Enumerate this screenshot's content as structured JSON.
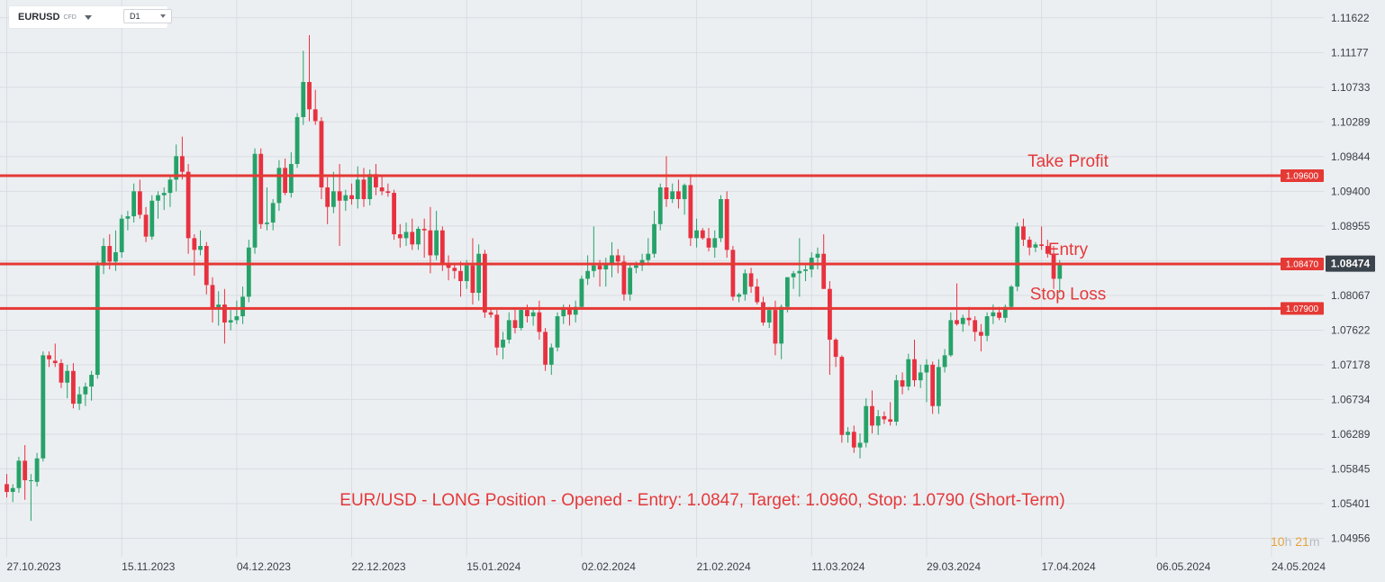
{
  "toolbar": {
    "symbol": "EURUSD",
    "symbol_type": "CFD",
    "timeframe": "D1"
  },
  "countdown": {
    "hours": "10",
    "hours_unit": "h",
    "minutes": "21",
    "minutes_unit": "m"
  },
  "colors": {
    "background": "#eceff2",
    "bullish": "#26a269",
    "bearish": "#e8313f",
    "level_line": "#e53935",
    "annotation_text": "#e5393a",
    "current_price_badge": "#3b434c"
  },
  "chart_data": {
    "type": "candlestick",
    "symbol": "EURUSD",
    "timeframe": "D1",
    "title": "",
    "ylim": [
      1.0472,
      1.1185
    ],
    "y_ticks": [
      "1.11622",
      "1.11177",
      "1.10733",
      "1.10289",
      "1.09844",
      "1.09400",
      "1.08955",
      "1.08511",
      "1.08067",
      "1.07622",
      "1.07178",
      "1.06734",
      "1.06289",
      "1.05845",
      "1.05401",
      "1.04956"
    ],
    "x_ticks": [
      "27.10.2023",
      "15.11.2023",
      "04.12.2023",
      "22.12.2023",
      "15.01.2024",
      "02.02.2024",
      "21.02.2024",
      "11.03.2024",
      "29.03.2024",
      "17.04.2024",
      "06.05.2024",
      "24.05.2024"
    ],
    "x_tick_index": [
      0,
      19,
      38,
      57,
      76,
      95,
      114,
      133,
      152,
      171,
      190,
      209
    ],
    "current_price": "1.08474",
    "current_price_value": 1.08474,
    "levels": [
      {
        "name": "Take Profit",
        "label": "Take Profit",
        "price": 1.096,
        "price_label": "1.09600"
      },
      {
        "name": "Entry",
        "label": "Entry",
        "price": 1.0847,
        "price_label": "1.08470"
      },
      {
        "name": "Stop Loss",
        "label": "Stop Loss",
        "price": 1.079,
        "price_label": "1.07900"
      }
    ],
    "annotation": "EUR/USD - LONG Position - Opened - Entry: 1.0847, Target: 1.0960, Stop: 1.0790 (Short-Term)",
    "candles": [
      [
        1.0565,
        1.0578,
        1.0548,
        1.0555
      ],
      [
        1.0555,
        1.0565,
        1.0542,
        1.056
      ],
      [
        1.056,
        1.06,
        1.0554,
        1.0595
      ],
      [
        1.0595,
        1.0615,
        1.0545,
        1.057
      ],
      [
        1.057,
        1.0578,
        1.0518,
        1.057
      ],
      [
        1.0568,
        1.0605,
        1.0562,
        1.0598
      ],
      [
        1.0598,
        1.0735,
        1.0594,
        1.073
      ],
      [
        1.073,
        1.0735,
        1.0715,
        1.0725
      ],
      [
        1.0723,
        1.0745,
        1.0715,
        1.072
      ],
      [
        1.072,
        1.0725,
        1.0688,
        1.0695
      ],
      [
        1.0695,
        1.0718,
        1.0675,
        1.071
      ],
      [
        1.071,
        1.072,
        1.0662,
        1.0668
      ],
      [
        1.0668,
        1.069,
        1.066,
        1.068
      ],
      [
        1.068,
        1.0695,
        1.0665,
        1.069
      ],
      [
        1.069,
        1.071,
        1.0672,
        1.0705
      ],
      [
        1.0705,
        1.085,
        1.07,
        1.0845
      ],
      [
        1.0845,
        1.088,
        1.0834,
        1.087
      ],
      [
        1.087,
        1.0885,
        1.084,
        1.085
      ],
      [
        1.085,
        1.089,
        1.0838,
        1.0862
      ],
      [
        1.0862,
        1.091,
        1.0855,
        1.0905
      ],
      [
        1.0905,
        1.0915,
        1.089,
        1.0908
      ],
      [
        1.0908,
        1.095,
        1.09,
        1.094
      ],
      [
        1.094,
        1.0955,
        1.0905,
        1.091
      ],
      [
        1.091,
        1.092,
        1.0875,
        1.0882
      ],
      [
        1.0882,
        1.0935,
        1.0878,
        1.0928
      ],
      [
        1.0928,
        1.094,
        1.0905,
        1.0935
      ],
      [
        1.0935,
        1.0945,
        1.0916,
        1.0938
      ],
      [
        1.0938,
        1.096,
        1.092,
        1.0955
      ],
      [
        1.0955,
        1.1,
        1.094,
        1.0985
      ],
      [
        1.0985,
        1.101,
        1.0955,
        1.0965
      ],
      [
        1.0965,
        1.0975,
        1.086,
        1.088
      ],
      [
        1.088,
        1.0885,
        1.0832,
        1.0865
      ],
      [
        1.0865,
        1.089,
        1.0858,
        1.087
      ],
      [
        1.087,
        1.0875,
        1.0808,
        1.082
      ],
      [
        1.082,
        1.083,
        1.0772,
        1.079
      ],
      [
        1.079,
        1.0812,
        1.0768,
        1.0795
      ],
      [
        1.0795,
        1.0815,
        1.0745,
        1.0772
      ],
      [
        1.0772,
        1.0788,
        1.0762,
        1.0775
      ],
      [
        1.0775,
        1.08,
        1.077,
        1.078
      ],
      [
        1.078,
        1.0818,
        1.077,
        1.0805
      ],
      [
        1.0805,
        1.0878,
        1.0798,
        1.0868
      ],
      [
        1.0868,
        1.0995,
        1.086,
        1.0988
      ],
      [
        1.0988,
        1.0995,
        1.0892,
        1.0898
      ],
      [
        1.0898,
        1.0945,
        1.089,
        1.09
      ],
      [
        1.09,
        1.093,
        1.089,
        1.0925
      ],
      [
        1.0925,
        1.098,
        1.0915,
        1.097
      ],
      [
        1.097,
        1.0982,
        1.0935,
        1.0938
      ],
      [
        1.0938,
        1.099,
        1.0932,
        1.0975
      ],
      [
        1.0975,
        1.104,
        1.097,
        1.1035
      ],
      [
        1.1035,
        1.112,
        1.1025,
        1.108
      ],
      [
        1.108,
        1.114,
        1.103,
        1.1045
      ],
      [
        1.1045,
        1.107,
        1.1025,
        1.103
      ],
      [
        1.103,
        1.1035,
        1.093,
        1.0945
      ],
      [
        1.0945,
        1.0958,
        1.0898,
        1.092
      ],
      [
        1.092,
        1.0965,
        1.0912,
        1.094
      ],
      [
        1.094,
        1.0975,
        1.087,
        1.0928
      ],
      [
        1.0928,
        1.0942,
        1.0915,
        1.0935
      ],
      [
        1.0935,
        1.095,
        1.0923,
        1.093
      ],
      [
        1.093,
        1.0972,
        1.0918,
        1.0955
      ],
      [
        1.0955,
        1.097,
        1.092,
        1.093
      ],
      [
        1.093,
        1.0968,
        1.0922,
        1.0962
      ],
      [
        1.0962,
        1.0975,
        1.0935,
        1.0945
      ],
      [
        1.0945,
        1.096,
        1.0935,
        1.094
      ],
      [
        1.094,
        1.095,
        1.0933,
        1.0938
      ],
      [
        1.0938,
        1.0942,
        1.0878,
        1.0885
      ],
      [
        1.0885,
        1.0898,
        1.0868,
        1.088
      ],
      [
        1.088,
        1.09,
        1.087,
        1.0888
      ],
      [
        1.0888,
        1.0905,
        1.0865,
        1.0872
      ],
      [
        1.0872,
        1.0895,
        1.0865,
        1.0892
      ],
      [
        1.0892,
        1.0905,
        1.0855,
        1.089
      ],
      [
        1.089,
        1.092,
        1.0835,
        1.0858
      ],
      [
        1.0858,
        1.0915,
        1.0852,
        1.089
      ],
      [
        1.089,
        1.0895,
        1.0838,
        1.0848
      ],
      [
        1.0848,
        1.0858,
        1.0826,
        1.0842
      ],
      [
        1.0842,
        1.0848,
        1.0828,
        1.0838
      ],
      [
        1.0838,
        1.085,
        1.0805,
        1.0825
      ],
      [
        1.0825,
        1.0852,
        1.0815,
        1.0845
      ],
      [
        1.0845,
        1.088,
        1.0795,
        1.081
      ],
      [
        1.081,
        1.0872,
        1.08,
        1.086
      ],
      [
        1.086,
        1.0865,
        1.0778,
        1.0785
      ],
      [
        1.0785,
        1.079,
        1.0778,
        1.0782
      ],
      [
        1.0782,
        1.0788,
        1.073,
        1.074
      ],
      [
        1.074,
        1.076,
        1.0725,
        1.075
      ],
      [
        1.075,
        1.0785,
        1.0745,
        1.0775
      ],
      [
        1.0775,
        1.079,
        1.0758,
        1.0765
      ],
      [
        1.0765,
        1.079,
        1.0762,
        1.0788
      ],
      [
        1.0788,
        1.0795,
        1.0772,
        1.078
      ],
      [
        1.078,
        1.079,
        1.0768,
        1.0785
      ],
      [
        1.0785,
        1.08,
        1.075,
        1.076
      ],
      [
        1.076,
        1.0765,
        1.071,
        1.0718
      ],
      [
        1.0718,
        1.0745,
        1.0705,
        1.074
      ],
      [
        1.074,
        1.0785,
        1.0735,
        1.078
      ],
      [
        1.078,
        1.0795,
        1.077,
        1.079
      ],
      [
        1.079,
        1.0795,
        1.0768,
        1.0782
      ],
      [
        1.0782,
        1.08,
        1.0772,
        1.0792
      ],
      [
        1.0792,
        1.0832,
        1.079,
        1.0828
      ],
      [
        1.0828,
        1.0858,
        1.082,
        1.0838
      ],
      [
        1.0838,
        1.0895,
        1.083,
        1.0845
      ],
      [
        1.0845,
        1.0852,
        1.0818,
        1.084
      ],
      [
        1.084,
        1.0855,
        1.0818,
        1.0848
      ],
      [
        1.0848,
        1.0875,
        1.083,
        1.0858
      ],
      [
        1.0858,
        1.0866,
        1.0835,
        1.085
      ],
      [
        1.085,
        1.0858,
        1.08,
        1.0808
      ],
      [
        1.0808,
        1.0848,
        1.08,
        1.0842
      ],
      [
        1.0842,
        1.085,
        1.0835,
        1.0845
      ],
      [
        1.0845,
        1.086,
        1.0838,
        1.0852
      ],
      [
        1.0852,
        1.088,
        1.0845,
        1.086
      ],
      [
        1.086,
        1.0915,
        1.0855,
        1.0898
      ],
      [
        1.0898,
        1.095,
        1.089,
        1.0945
      ],
      [
        1.0945,
        1.0985,
        1.092,
        1.093
      ],
      [
        1.093,
        1.095,
        1.0925,
        1.094
      ],
      [
        1.094,
        1.0955,
        1.0918,
        1.093
      ],
      [
        1.093,
        1.095,
        1.091,
        1.0948
      ],
      [
        1.0948,
        1.0962,
        1.087,
        1.088
      ],
      [
        1.088,
        1.0905,
        1.0868,
        1.089
      ],
      [
        1.089,
        1.0893,
        1.0878,
        1.088
      ],
      [
        1.088,
        1.0893,
        1.0863,
        1.0868
      ],
      [
        1.0868,
        1.089,
        1.0855,
        1.088
      ],
      [
        1.088,
        1.0935,
        1.0875,
        1.093
      ],
      [
        1.093,
        1.094,
        1.0855,
        1.0865
      ],
      [
        1.0865,
        1.087,
        1.08,
        1.0805
      ],
      [
        1.0805,
        1.081,
        1.0798,
        1.0808
      ],
      [
        1.0808,
        1.084,
        1.08,
        1.0835
      ],
      [
        1.0835,
        1.0842,
        1.081,
        1.0818
      ],
      [
        1.0818,
        1.0828,
        1.0795,
        1.0798
      ],
      [
        1.0798,
        1.0805,
        1.0768,
        1.0772
      ],
      [
        1.0772,
        1.0792,
        1.0765,
        1.0788
      ],
      [
        1.0788,
        1.08,
        1.073,
        1.0745
      ],
      [
        1.0745,
        1.0795,
        1.0725,
        1.0792
      ],
      [
        1.0792,
        1.083,
        1.0785,
        1.083
      ],
      [
        1.083,
        1.0838,
        1.0815,
        1.0835
      ],
      [
        1.0835,
        1.088,
        1.0805,
        1.0838
      ],
      [
        1.0838,
        1.0845,
        1.0825,
        1.084
      ],
      [
        1.084,
        1.0862,
        1.083,
        1.0855
      ],
      [
        1.0855,
        1.0868,
        1.084,
        1.086
      ],
      [
        1.086,
        1.0885,
        1.0815,
        1.0815
      ],
      [
        1.0815,
        1.0825,
        1.0705,
        1.075
      ],
      [
        1.075,
        1.0752,
        1.0715,
        1.0728
      ],
      [
        1.0728,
        1.073,
        1.0618,
        1.0628
      ],
      [
        1.0628,
        1.0638,
        1.0618,
        1.0632
      ],
      [
        1.0632,
        1.064,
        1.0605,
        1.0612
      ],
      [
        1.0612,
        1.063,
        1.0598,
        1.0618
      ],
      [
        1.0618,
        1.0675,
        1.0612,
        1.0665
      ],
      [
        1.0665,
        1.0685,
        1.063,
        1.064
      ],
      [
        1.064,
        1.066,
        1.0628,
        1.0652
      ],
      [
        1.0652,
        1.0658,
        1.0642,
        1.0648
      ],
      [
        1.0648,
        1.067,
        1.064,
        1.0645
      ],
      [
        1.0645,
        1.0705,
        1.064,
        1.0698
      ],
      [
        1.0698,
        1.0708,
        1.068,
        1.069
      ],
      [
        1.069,
        1.0732,
        1.0685,
        1.0725
      ],
      [
        1.0725,
        1.075,
        1.069,
        1.0698
      ],
      [
        1.0698,
        1.0718,
        1.0688,
        1.0708
      ],
      [
        1.0708,
        1.0725,
        1.067,
        1.0718
      ],
      [
        1.0718,
        1.0722,
        1.0655,
        1.0665
      ],
      [
        1.0665,
        1.0725,
        1.0655,
        1.0715
      ],
      [
        1.0715,
        1.0738,
        1.0708,
        1.073
      ],
      [
        1.073,
        1.0785,
        1.0728,
        1.0775
      ],
      [
        1.0775,
        1.0822,
        1.0768,
        1.077
      ],
      [
        1.077,
        1.0782,
        1.076,
        1.0778
      ],
      [
        1.0778,
        1.0792,
        1.0768,
        1.0775
      ],
      [
        1.0775,
        1.078,
        1.0748,
        1.076
      ],
      [
        1.076,
        1.077,
        1.0735,
        1.0755
      ],
      [
        1.0755,
        1.0785,
        1.0748,
        1.078
      ],
      [
        1.078,
        1.0795,
        1.077,
        1.0785
      ],
      [
        1.0785,
        1.0792,
        1.0775,
        1.0778
      ],
      [
        1.0778,
        1.0795,
        1.0772,
        1.0792
      ],
      [
        1.0792,
        1.082,
        1.0788,
        1.0818
      ],
      [
        1.0818,
        1.09,
        1.0812,
        1.0895
      ],
      [
        1.0895,
        1.0905,
        1.087,
        1.0878
      ],
      [
        1.0878,
        1.0882,
        1.0858,
        1.0868
      ],
      [
        1.0868,
        1.0875,
        1.0862,
        1.0872
      ],
      [
        1.0872,
        1.0895,
        1.0865,
        1.087
      ],
      [
        1.087,
        1.0878,
        1.0855,
        1.086
      ],
      [
        1.086,
        1.087,
        1.0815,
        1.0828
      ],
      [
        1.0828,
        1.0852,
        1.081,
        1.0847
      ]
    ]
  }
}
